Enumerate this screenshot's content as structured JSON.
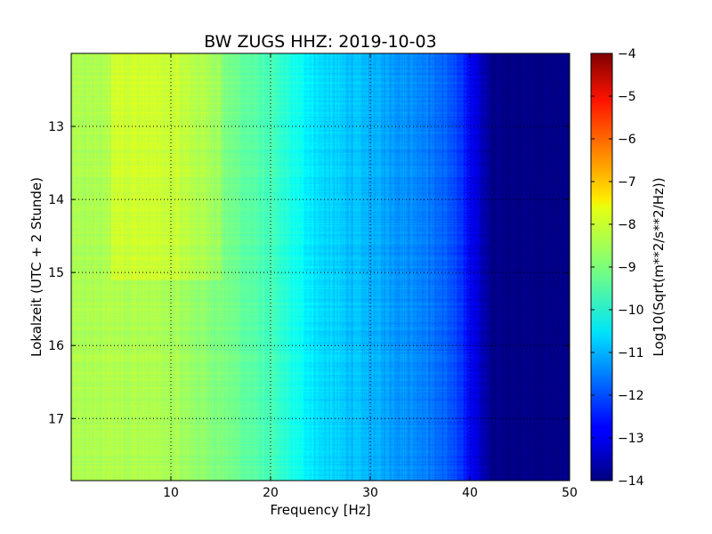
{
  "chart_data": {
    "type": "heatmap",
    "title": "BW ZUGS HHZ: 2019-10-03",
    "xlabel": "Frequency [Hz]",
    "ylabel": "Lokalzeit (UTC + 2 Stunde)",
    "xlim": [
      0,
      50
    ],
    "ylim": [
      17.85,
      12.0
    ],
    "x_ticks": [
      10,
      20,
      30,
      40,
      50
    ],
    "x_tick_labels": [
      "10",
      "20",
      "30",
      "40",
      "50"
    ],
    "y_ticks": [
      13,
      14,
      15,
      16,
      17
    ],
    "y_tick_labels": [
      "13",
      "14",
      "15",
      "16",
      "17"
    ],
    "grid": true,
    "colormap": "jet",
    "colorbar": {
      "label": "Log10(Sqrt(m**2/s**2/Hz))",
      "range": [
        -14,
        -4
      ],
      "ticks": [
        -4,
        -5,
        -6,
        -7,
        -8,
        -9,
        -10,
        -11,
        -12,
        -13,
        -14
      ],
      "tick_labels": [
        "−4",
        "−5",
        "−6",
        "−7",
        "−8",
        "−9",
        "−10",
        "−11",
        "−12",
        "−13",
        "−14"
      ]
    },
    "value_profile_by_frequency": {
      "frequency_hz": [
        0,
        5,
        10,
        15,
        20,
        22,
        25,
        30,
        35,
        38,
        40,
        42,
        50
      ],
      "log_psd": [
        -8.6,
        -8.5,
        -8.6,
        -9.0,
        -9.6,
        -10.0,
        -10.6,
        -11.0,
        -11.4,
        -11.9,
        -12.7,
        -13.9,
        -14.0
      ]
    },
    "elevated_band": {
      "time_start": 12.0,
      "time_end": 15.1,
      "freq_start": 4,
      "freq_end": 15,
      "delta_log_psd": 0.4
    }
  }
}
